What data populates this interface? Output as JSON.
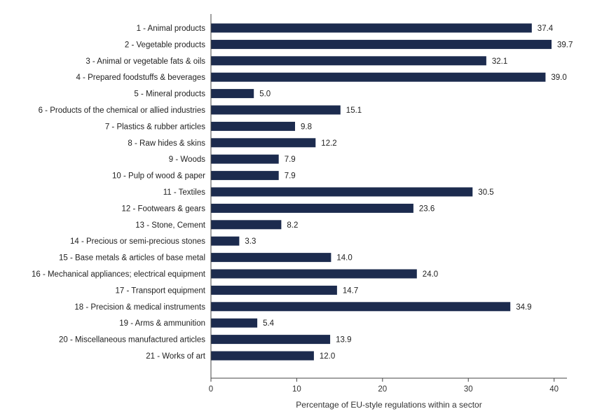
{
  "chart_data": {
    "type": "bar",
    "orientation": "horizontal",
    "categories": [
      "1 - Animal products",
      "2 - Vegetable products",
      "3 - Animal or vegetable fats & oils",
      "4 - Prepared foodstuffs & beverages",
      "5 - Mineral products",
      "6 - Products of the chemical or allied industries",
      "7 - Plastics & rubber articles",
      "8 - Raw hides & skins",
      "9 - Woods",
      "10 - Pulp of wood & paper",
      "11 - Textiles",
      "12 - Footwears & gears",
      "13 - Stone, Cement",
      "14 - Precious or semi-precious stones",
      "15 - Base metals & articles of base metal",
      "16 - Mechanical appliances; electrical equipment",
      "17 - Transport equipment",
      "18 - Precision & medical instruments",
      "19 - Arms & ammunition",
      "20 - Miscellaneous manufactured articles",
      "21 - Works of art"
    ],
    "values": [
      37.4,
      39.7,
      32.1,
      39.0,
      5.0,
      15.1,
      9.8,
      12.2,
      7.9,
      7.9,
      30.5,
      23.6,
      8.2,
      3.3,
      14.0,
      24.0,
      14.7,
      34.9,
      5.4,
      13.9,
      12.0
    ],
    "value_labels": [
      "37.4",
      "39.7",
      "32.1",
      "39.0",
      "5.0",
      "15.1",
      "9.8",
      "12.2",
      "7.9",
      "7.9",
      "30.5",
      "23.6",
      "8.2",
      "3.3",
      "14.0",
      "24.0",
      "14.7",
      "34.9",
      "5.4",
      "13.9",
      "12.0"
    ],
    "xlabel": "Percentage of EU-style regulations within a sector",
    "ylabel": "",
    "xlim": [
      0,
      41.5
    ],
    "xticks": [
      "0",
      "10",
      "20",
      "30",
      "40"
    ],
    "grid": false,
    "bar_color": "#1c2b4e"
  }
}
